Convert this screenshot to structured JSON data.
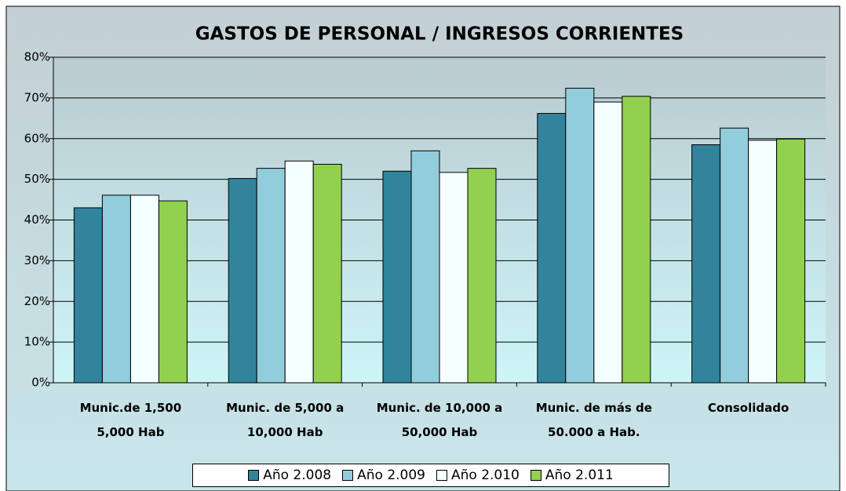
{
  "chart_data": {
    "type": "bar",
    "title": "GASTOS DE PERSONAL / INGRESOS CORRIENTES",
    "categories": [
      "Munic.de 1,500 5,000 Hab",
      "Munic. de 5,000 a 10,000 Hab",
      "Munic. de 10,000 a 50,000 Hab",
      "Munic. de más de 50.000 a Hab.",
      "Consolidado"
    ],
    "series": [
      {
        "name": "Año 2.008",
        "color": "#31849b",
        "values": [
          43.0,
          50.2,
          52.0,
          66.2,
          58.5
        ]
      },
      {
        "name": "Año 2.009",
        "color": "#92cddc",
        "values": [
          46.1,
          52.7,
          57.0,
          72.4,
          62.6
        ]
      },
      {
        "name": "Año 2.010",
        "color": "#f4ffff",
        "values": [
          46.1,
          54.5,
          51.7,
          69.0,
          59.6
        ]
      },
      {
        "name": "Año 2.011",
        "color": "#92d050",
        "values": [
          44.7,
          53.7,
          52.7,
          70.4,
          59.9
        ]
      }
    ],
    "ylim": [
      0,
      80
    ],
    "yticks": [
      {
        "value": 0,
        "label": "0%"
      },
      {
        "value": 10,
        "label": "10%"
      },
      {
        "value": 20,
        "label": "20%"
      },
      {
        "value": 30,
        "label": "30%"
      },
      {
        "value": 40,
        "label": "40%"
      },
      {
        "value": 50,
        "label": "50%"
      },
      {
        "value": 60,
        "label": "60%"
      },
      {
        "value": 70,
        "label": "70%"
      },
      {
        "value": 80,
        "label": "80%"
      }
    ],
    "grid": true,
    "legend": "bottom"
  }
}
